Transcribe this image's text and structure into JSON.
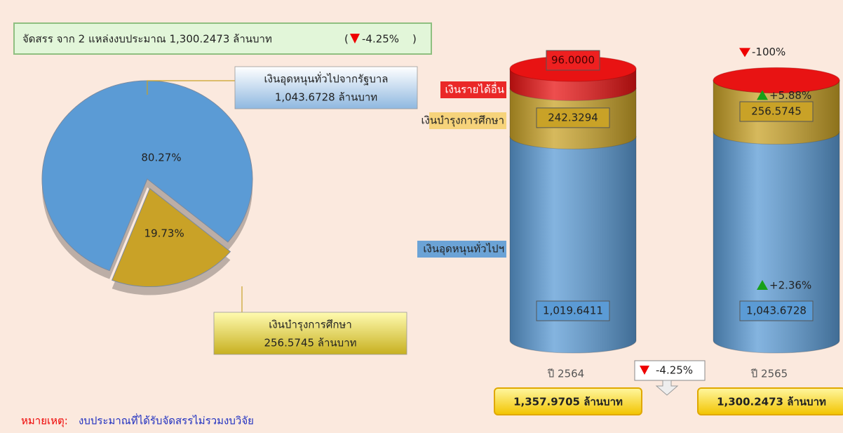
{
  "title": "จัดสรร จาก 2 แหล่งงบประมาณ 1,300.2473 ล้านบาท",
  "title_change": "-4.25%",
  "note_label": "หมายเหตุ:",
  "note": "งบประมาณที่ได้รับจัดสรรไม่รวมงบวิจัย",
  "chart_data": [
    {
      "type": "pie",
      "categories": [
        "เงินอุดหนุนทั่วไปจากรัฐบาล",
        "เงินบำรุงการศึกษา"
      ],
      "values": [
        80.27,
        19.73
      ],
      "value_labels": [
        "80.27%",
        "19.73%"
      ],
      "amounts": [
        "1,043.6728 ล้านบาท",
        "256.5745 ล้านบาท"
      ],
      "colors": [
        "#5b9bd5",
        "#c9a227"
      ]
    },
    {
      "type": "bar",
      "stacked": true,
      "categories": [
        "ปี 2564",
        "ปี 2565"
      ],
      "series": [
        {
          "name": "เงินอุดหนุนทั่วไปฯ",
          "color": "#5b9bd5",
          "values": [
            1019.6411,
            1043.6728
          ],
          "value_labels": [
            "1,019.6411",
            "1,043.6728"
          ],
          "changes": [
            null,
            "+2.36%"
          ]
        },
        {
          "name": "เงินบำรุงการศึกษา",
          "color": "#c9a227",
          "values": [
            242.3294,
            256.5745
          ],
          "value_labels": [
            "242.3294",
            "256.5745"
          ],
          "changes": [
            null,
            "+5.88%"
          ]
        },
        {
          "name": "เงินรายได้อื่น",
          "color": "#e81313",
          "values": [
            96,
            0
          ],
          "value_labels": [
            "96.0000",
            null
          ],
          "changes": [
            null,
            "-100%"
          ]
        }
      ],
      "totals": [
        "1,357.9705 ล้านบาท",
        "1,300.2473 ล้านบาท"
      ],
      "total_change": "-4.25%"
    }
  ]
}
